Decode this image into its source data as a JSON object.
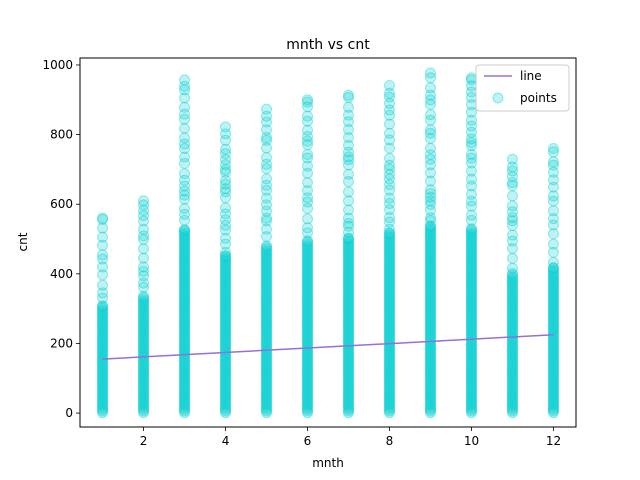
{
  "chart_data": {
    "type": "scatter",
    "title": "mnth vs cnt",
    "xlabel": "mnth",
    "ylabel": "cnt",
    "xlim": [
      0.45,
      12.55
    ],
    "ylim": [
      -40,
      1020
    ],
    "xticks": [
      2,
      4,
      6,
      8,
      10,
      12
    ],
    "yticks": [
      0,
      200,
      400,
      600,
      800,
      1000
    ],
    "grid": false,
    "legend_position": "top-right",
    "series": [
      {
        "name": "line",
        "kind": "line",
        "color": "#9370DB",
        "x": [
          1,
          12
        ],
        "y": [
          155,
          225
        ]
      },
      {
        "name": "points",
        "kind": "scatter",
        "color": "#00CED1",
        "columns": [
          {
            "x": 1,
            "ymin": 1,
            "ymax": 560
          },
          {
            "x": 2,
            "ymin": 1,
            "ymax": 610
          },
          {
            "x": 3,
            "ymin": 1,
            "ymax": 957
          },
          {
            "x": 4,
            "ymin": 1,
            "ymax": 822
          },
          {
            "x": 5,
            "ymin": 1,
            "ymax": 873
          },
          {
            "x": 6,
            "ymin": 1,
            "ymax": 900
          },
          {
            "x": 7,
            "ymin": 1,
            "ymax": 913
          },
          {
            "x": 8,
            "ymin": 1,
            "ymax": 941
          },
          {
            "x": 9,
            "ymin": 1,
            "ymax": 977
          },
          {
            "x": 10,
            "ymin": 1,
            "ymax": 963
          },
          {
            "x": 11,
            "ymin": 1,
            "ymax": 729
          },
          {
            "x": 12,
            "ymin": 1,
            "ymax": 760
          }
        ]
      }
    ]
  }
}
